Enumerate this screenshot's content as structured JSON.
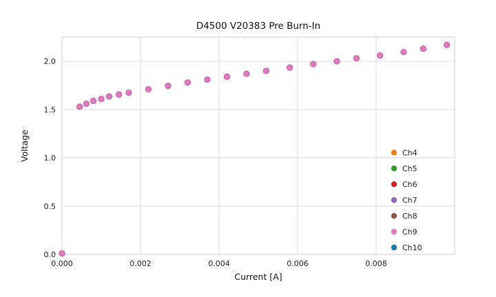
{
  "chart_data": {
    "type": "scatter",
    "title": "D4500 V20383 Pre Burn-In",
    "xlabel": "Current [A]",
    "ylabel": "Voltage",
    "xlim": [
      0,
      0.01
    ],
    "ylim": [
      0,
      2.25
    ],
    "xticks": [
      0,
      0.002,
      0.004,
      0.006,
      0.008
    ],
    "xtick_labels": [
      "0.000",
      "0.002",
      "0.004",
      "0.006",
      "0.008"
    ],
    "yticks": [
      0,
      0.5,
      1.0,
      1.5,
      2.0
    ],
    "ytick_labels": [
      "0.0",
      "0.5",
      "1.0",
      "1.5",
      "2.0"
    ],
    "grid": true,
    "grid_color": "#dcdcdc",
    "plot_border_color": "#cfcfcf",
    "legend_position": "lower right",
    "marker_edge_color": "#b560a2",
    "series": [
      {
        "name": "Ch4",
        "color": "#ff7f0e",
        "x": [],
        "y": []
      },
      {
        "name": "Ch5",
        "color": "#2ca02c",
        "x": [],
        "y": []
      },
      {
        "name": "Ch6",
        "color": "#d62728",
        "x": [],
        "y": []
      },
      {
        "name": "Ch7",
        "color": "#9467bd",
        "x": [],
        "y": []
      },
      {
        "name": "Ch8",
        "color": "#8c564b",
        "x": [],
        "y": []
      },
      {
        "name": "Ch9",
        "color": "#e377c2",
        "x": [
          0.0,
          0.00045,
          0.00062,
          0.0008,
          0.001,
          0.0012,
          0.00145,
          0.0017,
          0.0022,
          0.0027,
          0.0032,
          0.0037,
          0.0042,
          0.0047,
          0.0052,
          0.0058,
          0.0064,
          0.007,
          0.0075,
          0.0081,
          0.0087,
          0.0092,
          0.0098
        ],
        "y": [
          0.01,
          1.53,
          1.56,
          1.59,
          1.61,
          1.635,
          1.655,
          1.675,
          1.71,
          1.745,
          1.78,
          1.81,
          1.84,
          1.87,
          1.9,
          1.935,
          1.97,
          2.0,
          2.03,
          2.06,
          2.095,
          2.13,
          2.17
        ]
      },
      {
        "name": "Ch10",
        "color": "#1f77b4",
        "x": [],
        "y": []
      }
    ]
  }
}
